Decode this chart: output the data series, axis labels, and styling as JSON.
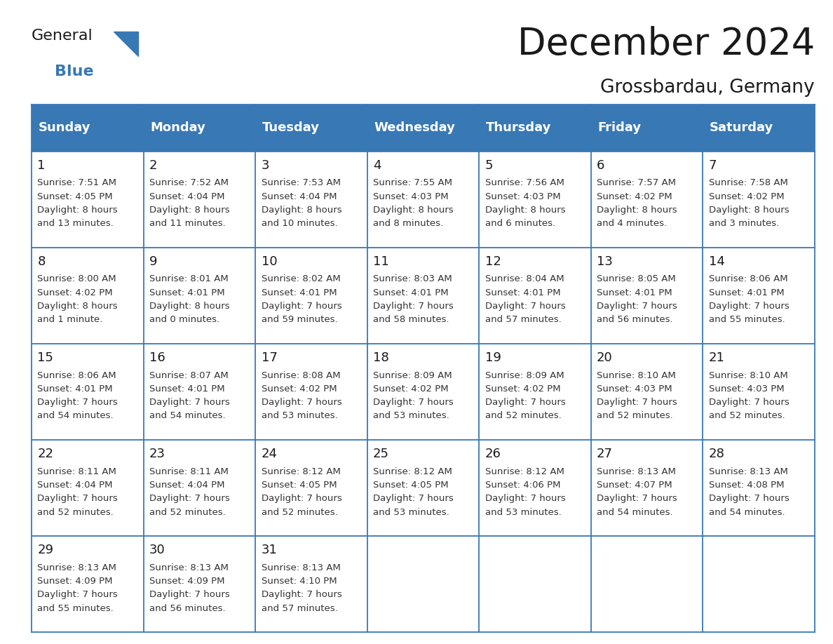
{
  "title": "December 2024",
  "subtitle": "Grossbardau, Germany",
  "header_color": "#3878b4",
  "header_text_color": "#ffffff",
  "border_color": "#3878b4",
  "day_headers": [
    "Sunday",
    "Monday",
    "Tuesday",
    "Wednesday",
    "Thursday",
    "Friday",
    "Saturday"
  ],
  "weeks": [
    [
      {
        "day": 1,
        "sunrise": "7:51 AM",
        "sunset": "4:05 PM",
        "daylight": "8 hours and 13 minutes."
      },
      {
        "day": 2,
        "sunrise": "7:52 AM",
        "sunset": "4:04 PM",
        "daylight": "8 hours and 11 minutes."
      },
      {
        "day": 3,
        "sunrise": "7:53 AM",
        "sunset": "4:04 PM",
        "daylight": "8 hours and 10 minutes."
      },
      {
        "day": 4,
        "sunrise": "7:55 AM",
        "sunset": "4:03 PM",
        "daylight": "8 hours and 8 minutes."
      },
      {
        "day": 5,
        "sunrise": "7:56 AM",
        "sunset": "4:03 PM",
        "daylight": "8 hours and 6 minutes."
      },
      {
        "day": 6,
        "sunrise": "7:57 AM",
        "sunset": "4:02 PM",
        "daylight": "8 hours and 4 minutes."
      },
      {
        "day": 7,
        "sunrise": "7:58 AM",
        "sunset": "4:02 PM",
        "daylight": "8 hours and 3 minutes."
      }
    ],
    [
      {
        "day": 8,
        "sunrise": "8:00 AM",
        "sunset": "4:02 PM",
        "daylight": "8 hours and 1 minute."
      },
      {
        "day": 9,
        "sunrise": "8:01 AM",
        "sunset": "4:01 PM",
        "daylight": "8 hours and 0 minutes."
      },
      {
        "day": 10,
        "sunrise": "8:02 AM",
        "sunset": "4:01 PM",
        "daylight": "7 hours and 59 minutes."
      },
      {
        "day": 11,
        "sunrise": "8:03 AM",
        "sunset": "4:01 PM",
        "daylight": "7 hours and 58 minutes."
      },
      {
        "day": 12,
        "sunrise": "8:04 AM",
        "sunset": "4:01 PM",
        "daylight": "7 hours and 57 minutes."
      },
      {
        "day": 13,
        "sunrise": "8:05 AM",
        "sunset": "4:01 PM",
        "daylight": "7 hours and 56 minutes."
      },
      {
        "day": 14,
        "sunrise": "8:06 AM",
        "sunset": "4:01 PM",
        "daylight": "7 hours and 55 minutes."
      }
    ],
    [
      {
        "day": 15,
        "sunrise": "8:06 AM",
        "sunset": "4:01 PM",
        "daylight": "7 hours and 54 minutes."
      },
      {
        "day": 16,
        "sunrise": "8:07 AM",
        "sunset": "4:01 PM",
        "daylight": "7 hours and 54 minutes."
      },
      {
        "day": 17,
        "sunrise": "8:08 AM",
        "sunset": "4:02 PM",
        "daylight": "7 hours and 53 minutes."
      },
      {
        "day": 18,
        "sunrise": "8:09 AM",
        "sunset": "4:02 PM",
        "daylight": "7 hours and 53 minutes."
      },
      {
        "day": 19,
        "sunrise": "8:09 AM",
        "sunset": "4:02 PM",
        "daylight": "7 hours and 52 minutes."
      },
      {
        "day": 20,
        "sunrise": "8:10 AM",
        "sunset": "4:03 PM",
        "daylight": "7 hours and 52 minutes."
      },
      {
        "day": 21,
        "sunrise": "8:10 AM",
        "sunset": "4:03 PM",
        "daylight": "7 hours and 52 minutes."
      }
    ],
    [
      {
        "day": 22,
        "sunrise": "8:11 AM",
        "sunset": "4:04 PM",
        "daylight": "7 hours and 52 minutes."
      },
      {
        "day": 23,
        "sunrise": "8:11 AM",
        "sunset": "4:04 PM",
        "daylight": "7 hours and 52 minutes."
      },
      {
        "day": 24,
        "sunrise": "8:12 AM",
        "sunset": "4:05 PM",
        "daylight": "7 hours and 52 minutes."
      },
      {
        "day": 25,
        "sunrise": "8:12 AM",
        "sunset": "4:05 PM",
        "daylight": "7 hours and 53 minutes."
      },
      {
        "day": 26,
        "sunrise": "8:12 AM",
        "sunset": "4:06 PM",
        "daylight": "7 hours and 53 minutes."
      },
      {
        "day": 27,
        "sunrise": "8:13 AM",
        "sunset": "4:07 PM",
        "daylight": "7 hours and 54 minutes."
      },
      {
        "day": 28,
        "sunrise": "8:13 AM",
        "sunset": "4:08 PM",
        "daylight": "7 hours and 54 minutes."
      }
    ],
    [
      {
        "day": 29,
        "sunrise": "8:13 AM",
        "sunset": "4:09 PM",
        "daylight": "7 hours and 55 minutes."
      },
      {
        "day": 30,
        "sunrise": "8:13 AM",
        "sunset": "4:09 PM",
        "daylight": "7 hours and 56 minutes."
      },
      {
        "day": 31,
        "sunrise": "8:13 AM",
        "sunset": "4:10 PM",
        "daylight": "7 hours and 57 minutes."
      },
      null,
      null,
      null,
      null
    ]
  ],
  "title_fontsize": 38,
  "subtitle_fontsize": 19,
  "header_fontsize": 13,
  "day_number_fontsize": 13,
  "cell_text_fontsize": 9.5,
  "logo_general_fontsize": 16,
  "logo_blue_fontsize": 16
}
